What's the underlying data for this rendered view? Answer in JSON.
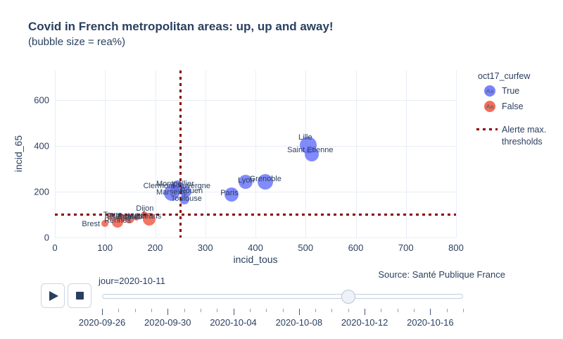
{
  "title": "Covid in French metropolitan areas: up, up and away!",
  "subtitle": "(bubble size = rea%)",
  "source": "Source: Santé Publique France",
  "colors": {
    "text": "#2a3f5f",
    "grid": "#e8eef7",
    "true_marker": "#636efa",
    "false_marker": "#ef553b",
    "threshold": "#8b0000"
  },
  "legend": {
    "title": "oct17_curfew",
    "items": [
      {
        "label": "True",
        "marker": "Aa",
        "color": "#636efa"
      },
      {
        "label": "False",
        "marker": "Aa",
        "color": "#ef553b"
      }
    ],
    "threshold_item": {
      "label_line1": "Alerte max.",
      "label_line2": "thresholds"
    }
  },
  "chart_data": {
    "type": "scatter",
    "title": "Covid in French metropolitan areas: up, up and away!",
    "xlabel": "incid_tous",
    "ylabel": "incid_65",
    "xlim": [
      0,
      800
    ],
    "ylim": [
      0,
      729
    ],
    "xticks": [
      0,
      100,
      200,
      300,
      400,
      500,
      600,
      700,
      800
    ],
    "yticks": [
      0,
      200,
      400,
      600
    ],
    "grid": true,
    "legend_position": "right",
    "size_meaning": "rea%",
    "thresholds": {
      "x": 250,
      "y": 100,
      "style": "dotted",
      "color": "#8b0000",
      "label": "Alerte max. thresholds"
    },
    "series": [
      {
        "name": "False",
        "color": "#ef553b",
        "points": [
          {
            "city": "Clermont-Auvergne",
            "x": 239,
            "y": 212,
            "r": 6,
            "dx": 3,
            "dy": -4
          },
          {
            "city": "Dijon",
            "x": 178,
            "y": 98,
            "r": 5,
            "dx": 1,
            "dy": -9
          },
          {
            "city": "Orleans",
            "x": 188,
            "y": 80,
            "r": 9,
            "dx": -2,
            "dy": -4
          },
          {
            "city": "Tours",
            "x": 111,
            "y": 92,
            "r": 5,
            "dx": 3,
            "dy": -2
          },
          {
            "city": "Nancy",
            "x": 132,
            "y": 86,
            "r": 6,
            "dx": 0,
            "dy": -2
          },
          {
            "city": "Nantes",
            "x": 149,
            "y": 83,
            "r": 7,
            "dx": 0,
            "dy": -2
          },
          {
            "city": "Metz",
            "x": 163,
            "y": 86,
            "r": 4,
            "dx": -1,
            "dy": -2
          },
          {
            "city": "Rennes",
            "x": 125,
            "y": 68,
            "r": 8,
            "dx": 0,
            "dy": -2
          },
          {
            "city": "Brest",
            "x": 100,
            "y": 62,
            "r": 5,
            "dx": -20,
            "dy": 1
          }
        ]
      },
      {
        "name": "True",
        "color": "#636efa",
        "points": [
          {
            "city": "Lille",
            "x": 505,
            "y": 403,
            "r": 12,
            "dx": -4,
            "dy": -11
          },
          {
            "city": "Saint Etienne",
            "x": 512,
            "y": 363,
            "r": 10,
            "dx": -2,
            "dy": -6
          },
          {
            "city": "Grenoble",
            "x": 420,
            "y": 243,
            "r": 11,
            "dx": 0,
            "dy": -4
          },
          {
            "city": "Lyon",
            "x": 380,
            "y": 243,
            "r": 10,
            "dx": 1,
            "dy": -2
          },
          {
            "city": "Paris",
            "x": 352,
            "y": 188,
            "r": 10,
            "dx": -3,
            "dy": -2
          },
          {
            "city": "Montpellier",
            "x": 244,
            "y": 225,
            "r": 8,
            "dx": -3,
            "dy": -3
          },
          {
            "city": "Rouen",
            "x": 261,
            "y": 200,
            "r": 8,
            "dx": 8,
            "dy": -1
          },
          {
            "city": "Marseille",
            "x": 233,
            "y": 194,
            "r": 11,
            "dx": 0,
            "dy": -1
          },
          {
            "city": "Toulouse",
            "x": 258,
            "y": 166,
            "r": 7,
            "dx": 3,
            "dy": -1
          }
        ]
      }
    ]
  },
  "slider": {
    "label": "jour=2020-10-11",
    "tick_count": 23,
    "label_every": 4,
    "handle_index": 15,
    "date_labels": [
      "2020-09-26",
      "2020-09-30",
      "2020-10-04",
      "2020-10-08",
      "2020-10-12",
      "2020-10-16"
    ]
  }
}
